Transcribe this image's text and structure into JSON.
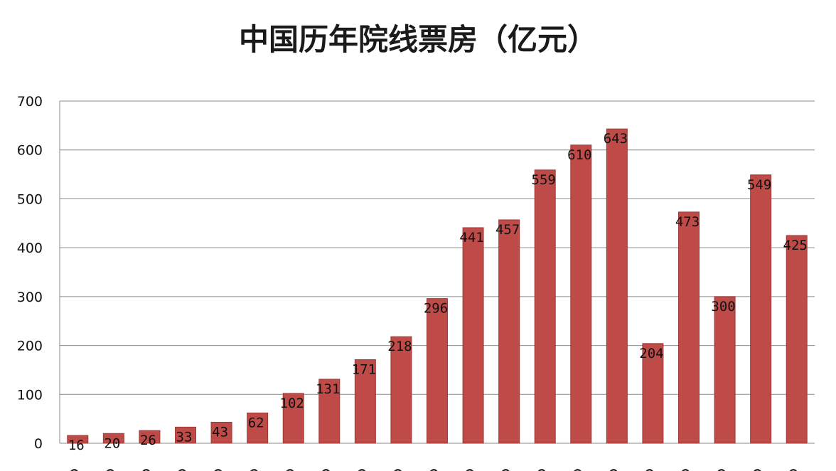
{
  "chart_data": {
    "type": "bar",
    "title": "中国历年院线票房（亿元）",
    "xlabel": "",
    "ylabel": "",
    "ylim": [
      0,
      700
    ],
    "yticks": [
      0,
      100,
      200,
      300,
      400,
      500,
      600,
      700
    ],
    "grid": true,
    "legend": "none",
    "bar_color": "#bf4b48",
    "values": [
      16,
      20,
      26,
      33,
      43,
      62,
      102,
      131,
      171,
      218,
      296,
      441,
      457,
      559,
      610,
      643,
      204,
      473,
      300,
      549,
      425
    ],
    "data_labels": [
      "16",
      "20",
      "26",
      "33",
      "43",
      "62",
      "102",
      "131",
      "171",
      "218",
      "296",
      "441",
      "457",
      "559",
      "610",
      "643",
      "204",
      "473",
      "300",
      "549",
      "425"
    ]
  }
}
